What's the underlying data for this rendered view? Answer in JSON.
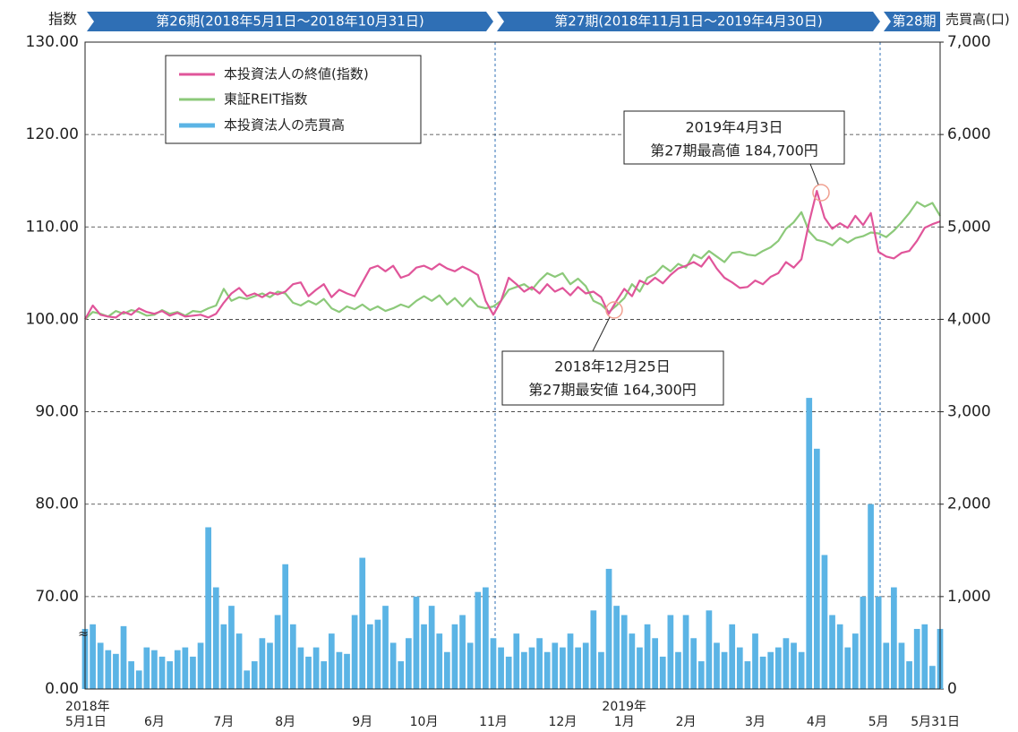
{
  "chart_data": {
    "type": "combo",
    "ylabel": "指数",
    "y2label": "売買高(口)",
    "periods": [
      "第26期(2018年5月1日～2018年10月31日)",
      "第27期(2018年11月1日～2019年4月30日)",
      "第28期"
    ],
    "axis_break": true,
    "ylim": [
      60,
      130
    ],
    "yticks": [
      {
        "value": 0,
        "label": "0.00"
      },
      {
        "value": 70,
        "label": "70.00"
      },
      {
        "value": 80,
        "label": "80.00"
      },
      {
        "value": 90,
        "label": "90.00"
      },
      {
        "value": 100,
        "label": "100.00"
      },
      {
        "value": 110,
        "label": "110.00"
      },
      {
        "value": 120,
        "label": "120.00"
      },
      {
        "value": 130,
        "label": "130.00"
      }
    ],
    "y2lim": [
      0,
      7000
    ],
    "y2ticks": [
      0,
      {
        "value": 1000,
        "label": "1,000"
      },
      {
        "value": 2000,
        "label": "2,000"
      },
      {
        "value": 3000,
        "label": "3,000"
      },
      {
        "value": 4000,
        "label": "4,000"
      },
      {
        "value": 5000,
        "label": "5,000"
      },
      {
        "value": 6000,
        "label": "6,000"
      },
      {
        "value": 7000,
        "label": "7,000"
      }
    ],
    "grid": true,
    "legend": "upper left",
    "annotations": [
      [
        "2019年4月3日",
        "第27期最高値 184,700円"
      ],
      [
        "2018年12月25日",
        "第27期最安値 164,300円"
      ]
    ],
    "categories": [
      "2018年\n5月1日",
      null,
      null,
      null,
      null,
      null,
      null,
      null,
      null,
      "6月",
      null,
      null,
      null,
      null,
      null,
      null,
      null,
      null,
      "7月",
      null,
      null,
      null,
      null,
      null,
      null,
      null,
      "8月",
      null,
      null,
      null,
      null,
      null,
      null,
      null,
      null,
      null,
      "9月",
      null,
      null,
      null,
      null,
      null,
      null,
      null,
      "10月",
      null,
      null,
      null,
      null,
      null,
      null,
      null,
      null,
      "11月",
      null,
      null,
      null,
      null,
      null,
      null,
      null,
      null,
      "12月",
      null,
      null,
      null,
      null,
      null,
      null,
      null,
      "2019年\n1月",
      null,
      null,
      null,
      null,
      null,
      null,
      null,
      "2月",
      null,
      null,
      null,
      null,
      null,
      null,
      null,
      null,
      "3月",
      null,
      null,
      null,
      null,
      null,
      null,
      null,
      "4月",
      null,
      null,
      null,
      null,
      null,
      null,
      null,
      "5月",
      null,
      null,
      null,
      null,
      null,
      null,
      null,
      "5月31日"
    ],
    "series": [
      {
        "name": "本投資法人の終値(指数)",
        "type": "line",
        "color": "#e0559a",
        "values": [
          100.0,
          101.5,
          100.5,
          100.3,
          100.2,
          100.8,
          100.5,
          101.2,
          100.8,
          100.6,
          100.9,
          100.4,
          100.7,
          100.3,
          100.4,
          100.5,
          100.2,
          100.6,
          101.8,
          102.8,
          103.4,
          102.5,
          102.8,
          102.4,
          102.9,
          102.7,
          103.0,
          103.8,
          104.0,
          102.5,
          103.2,
          103.8,
          102.4,
          103.2,
          102.8,
          102.5,
          104.0,
          105.5,
          105.8,
          105.2,
          105.8,
          104.5,
          104.8,
          105.6,
          105.8,
          105.4,
          106.0,
          105.5,
          105.2,
          105.7,
          105.3,
          104.8,
          102.0,
          100.5,
          102.0,
          104.5,
          103.8,
          103.0,
          103.5,
          102.8,
          103.8,
          103.0,
          103.4,
          102.6,
          103.5,
          102.8,
          103.0,
          102.4,
          100.6,
          102.0,
          103.3,
          102.5,
          104.2,
          103.8,
          104.5,
          103.9,
          104.8,
          105.5,
          105.8,
          106.2,
          105.7,
          106.8,
          105.5,
          104.5,
          104.0,
          103.4,
          103.5,
          104.2,
          103.8,
          104.6,
          105.0,
          106.2,
          105.6,
          106.5,
          110.5,
          113.9,
          111.0,
          109.8,
          110.4,
          109.9,
          111.2,
          110.2,
          111.5,
          107.3,
          106.8,
          106.6,
          107.2,
          107.4,
          108.5,
          109.9,
          110.3,
          110.6
        ]
      },
      {
        "name": "東証REIT指数",
        "type": "line",
        "color": "#8cc97a",
        "values": [
          100.0,
          100.8,
          100.6,
          100.3,
          100.9,
          100.6,
          101.0,
          100.8,
          100.4,
          100.5,
          101.0,
          100.6,
          100.8,
          100.4,
          100.9,
          100.8,
          101.2,
          101.5,
          103.3,
          102.0,
          102.4,
          102.2,
          102.5,
          102.8,
          102.4,
          103.0,
          102.8,
          101.8,
          101.5,
          102.0,
          101.6,
          102.2,
          101.2,
          100.8,
          101.4,
          101.1,
          101.6,
          101.0,
          101.4,
          100.9,
          101.2,
          101.6,
          101.3,
          102.0,
          102.5,
          102.0,
          102.6,
          101.6,
          102.3,
          101.4,
          102.3,
          101.4,
          101.2,
          101.4,
          102.0,
          103.2,
          103.5,
          103.8,
          103.2,
          104.2,
          105.0,
          104.6,
          105.0,
          103.8,
          104.4,
          103.6,
          102.0,
          101.6,
          100.8,
          101.5,
          102.3,
          103.8,
          103.0,
          104.5,
          104.9,
          105.8,
          105.2,
          106.0,
          105.6,
          107.0,
          106.6,
          107.4,
          106.8,
          106.2,
          107.2,
          107.3,
          107.0,
          106.9,
          107.4,
          107.8,
          108.5,
          109.8,
          110.5,
          111.6,
          109.5,
          108.6,
          108.4,
          108.0,
          108.8,
          108.3,
          108.8,
          109.0,
          109.4,
          109.3,
          108.9,
          109.6,
          110.5,
          111.5,
          112.7,
          112.2,
          112.6,
          111.2
        ]
      },
      {
        "name": "本投資法人の売買高",
        "type": "bar",
        "axis": "y2",
        "color": "#5bb4e5",
        "values": [
          650,
          700,
          500,
          420,
          380,
          680,
          300,
          200,
          450,
          420,
          350,
          300,
          420,
          450,
          350,
          500,
          1750,
          1100,
          700,
          900,
          600,
          200,
          300,
          550,
          500,
          800,
          1350,
          700,
          450,
          350,
          450,
          300,
          600,
          400,
          380,
          800,
          1420,
          700,
          750,
          900,
          500,
          300,
          550,
          1000,
          700,
          900,
          600,
          400,
          700,
          800,
          500,
          1050,
          1100,
          550,
          450,
          350,
          600,
          400,
          450,
          550,
          400,
          500,
          450,
          600,
          450,
          500,
          850,
          400,
          1300,
          900,
          800,
          600,
          450,
          700,
          550,
          350,
          800,
          400,
          800,
          550,
          300,
          850,
          500,
          400,
          700,
          450,
          300,
          600,
          350,
          400,
          450,
          550,
          500,
          400,
          3150,
          2600,
          1450,
          800,
          700,
          450,
          600,
          1000,
          2000,
          1000,
          500,
          1100,
          500,
          300,
          650,
          700,
          250,
          650
        ]
      }
    ]
  }
}
